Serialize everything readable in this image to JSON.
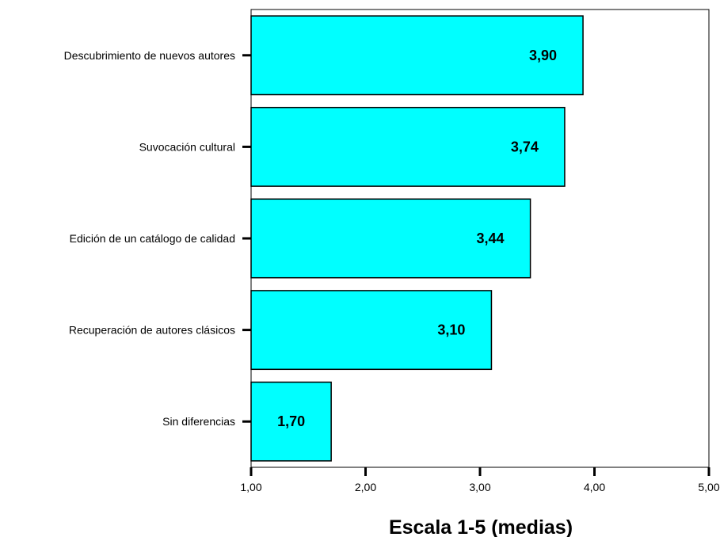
{
  "chart_data": {
    "type": "bar",
    "orientation": "horizontal",
    "categories": [
      "Descubrimiento de nuevos autores",
      "Suvocación cultural",
      "Edición de un catálogo de calidad",
      "Recuperación de autores clásicos",
      "Sin diferencias"
    ],
    "values": [
      3.9,
      3.74,
      3.44,
      3.1,
      1.7
    ],
    "data_labels": [
      "3,90",
      "3,74",
      "3,44",
      "3,10",
      "1,70"
    ],
    "xlim": [
      1,
      5
    ],
    "x_ticks": [
      1,
      2,
      3,
      4,
      5
    ],
    "x_tick_labels": [
      "1,00",
      "2,00",
      "3,00",
      "4,00",
      "5,00"
    ],
    "xlabel": "Escala 1-5 (medias)",
    "title": "",
    "grid": false,
    "bar_color": "#00ffff",
    "bar_edge_color": "#000000"
  }
}
